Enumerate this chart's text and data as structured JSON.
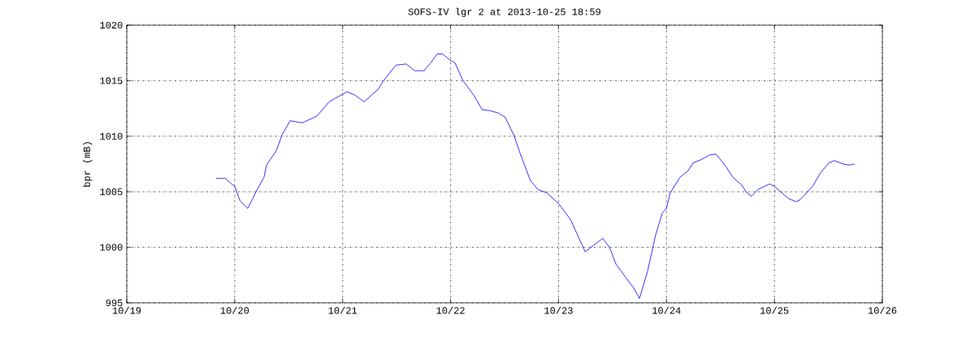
{
  "chart_data": {
    "type": "line",
    "title": "SOFS-IV lgr 2 at 2013-10-25 18:59",
    "ylabel": "bpr (mB)",
    "xlim": [
      "2013-10-19",
      "2013-10-26"
    ],
    "xticks": [
      {
        "value": "2013-10-19",
        "label": "10/19"
      },
      {
        "value": "2013-10-20",
        "label": "10/20"
      },
      {
        "value": "2013-10-21",
        "label": "10/21"
      },
      {
        "value": "2013-10-22",
        "label": "10/22"
      },
      {
        "value": "2013-10-23",
        "label": "10/23"
      },
      {
        "value": "2013-10-24",
        "label": "10/24"
      },
      {
        "value": "2013-10-25",
        "label": "10/25"
      },
      {
        "value": "2013-10-26",
        "label": "10/26"
      }
    ],
    "ylim": [
      995,
      1020
    ],
    "yticks": [
      995,
      1000,
      1005,
      1010,
      1015,
      1020
    ],
    "grid": true,
    "line_style": "solid",
    "marker": "none",
    "x": [
      "2013-10-19T19:50",
      "2013-10-19T22:00",
      "2013-10-19T23:00",
      "2013-10-20T00:00",
      "2013-10-20T01:10",
      "2013-10-20T02:55",
      "2013-10-20T04:45",
      "2013-10-20T06:30",
      "2013-10-20T07:05",
      "2013-10-20T09:15",
      "2013-10-20T10:30",
      "2013-10-20T12:20",
      "2013-10-20T15:00",
      "2013-10-20T18:15",
      "2013-10-20T21:00",
      "2013-10-20T22:45",
      "2013-10-21T00:55",
      "2013-10-21T02:45",
      "2013-10-21T04:45",
      "2013-10-21T07:50",
      "2013-10-21T09:05",
      "2013-10-21T11:50",
      "2013-10-21T14:10",
      "2013-10-21T16:00",
      "2013-10-21T18:05",
      "2013-10-21T19:35",
      "2013-10-21T21:00",
      "2013-10-21T22:15",
      "2013-10-21T23:45",
      "2013-10-22T01:00",
      "2013-10-22T02:45",
      "2013-10-22T05:10",
      "2013-10-22T07:00",
      "2013-10-22T08:45",
      "2013-10-22T10:35",
      "2013-10-22T12:10",
      "2013-10-22T14:10",
      "2013-10-22T15:25",
      "2013-10-22T17:45",
      "2013-10-22T19:25",
      "2013-10-22T21:25",
      "2013-10-23T00:05",
      "2013-10-23T02:40",
      "2013-10-23T05:55",
      "2013-10-23T09:50",
      "2013-10-23T11:20",
      "2013-10-23T12:45",
      "2013-10-23T14:55",
      "2013-10-23T16:45",
      "2013-10-23T18:00",
      "2013-10-23T19:50",
      "2013-10-23T21:35",
      "2013-10-23T23:05",
      "2013-10-24T00:00",
      "2013-10-24T00:50",
      "2013-10-24T03:00",
      "2013-10-24T04:50",
      "2013-10-24T05:55",
      "2013-10-24T07:45",
      "2013-10-24T09:30",
      "2013-10-24T11:00",
      "2013-10-24T13:10",
      "2013-10-24T14:45",
      "2013-10-24T16:45",
      "2013-10-24T17:40",
      "2013-10-24T18:55",
      "2013-10-24T20:20",
      "2013-10-24T22:55",
      "2013-10-25T00:00",
      "2013-10-25T03:05",
      "2013-10-25T04:50",
      "2013-10-25T05:45",
      "2013-10-25T08:30",
      "2013-10-25T10:15",
      "2013-10-25T12:05",
      "2013-10-25T13:20",
      "2013-10-25T15:20",
      "2013-10-25T16:35",
      "2013-10-25T17:50"
    ],
    "series": [
      {
        "color": "#0000ff",
        "values": [
          1006.2,
          1006.2,
          1005.8,
          1005.5,
          1004.2,
          1003.5,
          1005.0,
          1006.3,
          1007.4,
          1008.7,
          1010.1,
          1011.4,
          1011.2,
          1011.8,
          1013.1,
          1013.5,
          1014.0,
          1013.7,
          1013.1,
          1014.2,
          1015.0,
          1016.4,
          1016.5,
          1015.9,
          1015.9,
          1016.6,
          1017.4,
          1017.4,
          1016.9,
          1016.6,
          1015.0,
          1013.7,
          1012.4,
          1012.3,
          1012.1,
          1011.7,
          1010.0,
          1008.5,
          1006.0,
          1005.2,
          1004.9,
          1003.9,
          1002.5,
          999.6,
          1000.8,
          1000.0,
          998.5,
          997.3,
          996.3,
          995.4,
          997.9,
          1001.1,
          1003.1,
          1003.5,
          1004.9,
          1006.3,
          1006.9,
          1007.6,
          1007.9,
          1008.3,
          1008.4,
          1007.3,
          1006.3,
          1005.6,
          1005.0,
          1004.6,
          1005.2,
          1005.7,
          1005.5,
          1004.4,
          1004.1,
          1004.3,
          1005.5,
          1006.7,
          1007.6,
          1007.8,
          1007.5,
          1007.4,
          1007.5
        ]
      }
    ]
  }
}
